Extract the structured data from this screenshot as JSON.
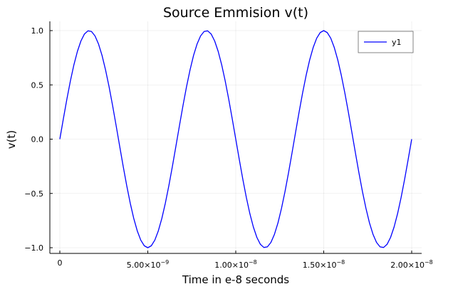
{
  "chart_data": {
    "type": "line",
    "title": "Source Emmision v(t)",
    "xlabel": "Time in e-8 seconds",
    "ylabel": "v(t)",
    "xlim": [
      0,
      2e-08
    ],
    "ylim": [
      -1.0,
      1.0
    ],
    "grid": true,
    "legend_position": "top-right",
    "x_ticks": [
      {
        "value": 0,
        "label": "0"
      },
      {
        "value": 5e-09,
        "label": "5.00×10",
        "exp": "−9"
      },
      {
        "value": 1e-08,
        "label": "1.00×10",
        "exp": "−8"
      },
      {
        "value": 1.5e-08,
        "label": "1.50×10",
        "exp": "−8"
      },
      {
        "value": 2e-08,
        "label": "2.00×10",
        "exp": "−8"
      }
    ],
    "y_ticks": [
      {
        "value": 1.0,
        "label": "1.0"
      },
      {
        "value": 0.5,
        "label": "0.5"
      },
      {
        "value": 0.0,
        "label": "0.0"
      },
      {
        "value": -0.5,
        "label": "−0.5"
      },
      {
        "value": -1.0,
        "label": "−1.0"
      }
    ],
    "series": [
      {
        "name": "y1",
        "color": "#0000ff",
        "x": [
          0,
          2e-10,
          4e-10,
          6e-10,
          8e-10,
          1e-09,
          1.2e-09,
          1.4e-09,
          1.6e-09,
          1.8e-09,
          2e-09,
          2.2e-09,
          2.4e-09,
          2.6e-09,
          2.8e-09,
          3e-09,
          3.2e-09,
          3.4e-09,
          3.6e-09,
          3.8e-09,
          4e-09,
          4.2e-09,
          4.4e-09,
          4.6e-09,
          4.8e-09,
          5e-09,
          5.2e-09,
          5.4e-09,
          5.6e-09,
          5.8e-09,
          6e-09,
          6.2e-09,
          6.4e-09,
          6.6e-09,
          6.8e-09,
          7e-09,
          7.2e-09,
          7.4e-09,
          7.6e-09,
          7.8e-09,
          8e-09,
          8.2e-09,
          8.4e-09,
          8.6e-09,
          8.8e-09,
          9e-09,
          9.2e-09,
          9.4e-09,
          9.6e-09,
          9.8e-09,
          1e-08,
          1.02e-08,
          1.04e-08,
          1.06e-08,
          1.08e-08,
          1.1e-08,
          1.12e-08,
          1.14e-08,
          1.16e-08,
          1.18e-08,
          1.2e-08,
          1.22e-08,
          1.24e-08,
          1.26e-08,
          1.28e-08,
          1.3e-08,
          1.32e-08,
          1.34e-08,
          1.36e-08,
          1.38e-08,
          1.4e-08,
          1.42e-08,
          1.44e-08,
          1.46e-08,
          1.48e-08,
          1.5e-08,
          1.52e-08,
          1.54e-08,
          1.56e-08,
          1.58e-08,
          1.6e-08,
          1.62e-08,
          1.64e-08,
          1.66e-08,
          1.68e-08,
          1.7e-08,
          1.72e-08,
          1.74e-08,
          1.76e-08,
          1.78e-08,
          1.8e-08,
          1.82e-08,
          1.84e-08,
          1.86e-08,
          1.88e-08,
          1.9e-08,
          1.92e-08,
          1.94e-08,
          1.96e-08,
          1.98e-08,
          2e-08
        ],
        "y": [
          0.0,
          0.187,
          0.368,
          0.536,
          0.685,
          0.809,
          0.905,
          0.969,
          0.998,
          0.992,
          0.951,
          0.876,
          0.771,
          0.637,
          0.482,
          0.309,
          0.125,
          -0.063,
          -0.249,
          -0.426,
          -0.588,
          -0.729,
          -0.844,
          -0.93,
          -0.982,
          -1.0,
          -0.982,
          -0.93,
          -0.844,
          -0.729,
          -0.588,
          -0.426,
          -0.249,
          -0.063,
          0.125,
          0.309,
          0.482,
          0.637,
          0.771,
          0.876,
          0.951,
          0.992,
          0.998,
          0.969,
          0.905,
          0.809,
          0.685,
          0.536,
          0.368,
          0.187,
          0.0,
          -0.187,
          -0.368,
          -0.536,
          -0.685,
          -0.809,
          -0.905,
          -0.969,
          -0.998,
          -0.992,
          -0.951,
          -0.876,
          -0.771,
          -0.637,
          -0.482,
          -0.309,
          -0.125,
          0.063,
          0.249,
          0.426,
          0.588,
          0.729,
          0.844,
          0.93,
          0.982,
          1.0,
          0.982,
          0.93,
          0.844,
          0.729,
          0.588,
          0.426,
          0.249,
          0.063,
          -0.125,
          -0.309,
          -0.482,
          -0.637,
          -0.771,
          -0.876,
          -0.951,
          -0.992,
          -0.998,
          -0.969,
          -0.905,
          -0.809,
          -0.685,
          -0.536,
          -0.368,
          -0.187,
          0.0
        ]
      }
    ]
  }
}
